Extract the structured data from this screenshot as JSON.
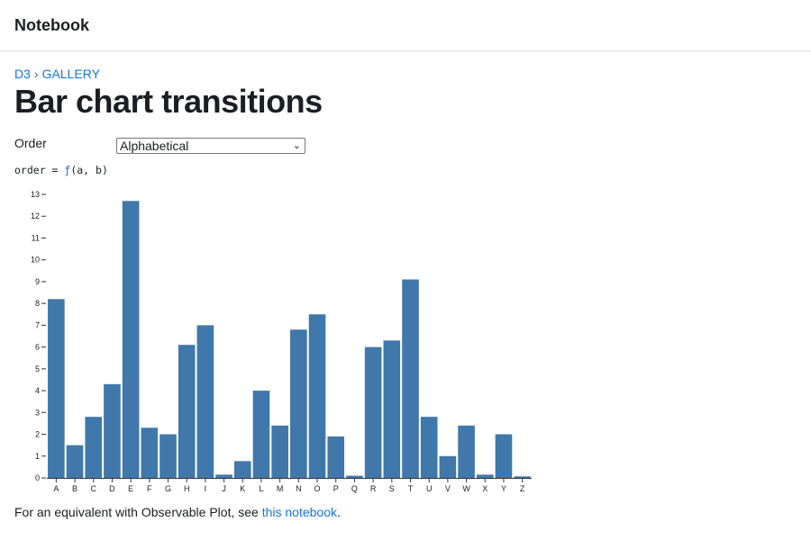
{
  "topbar": {
    "title": "Notebook"
  },
  "breadcrumb": {
    "root": "D3",
    "separator": "›",
    "section": "GALLERY"
  },
  "page": {
    "title": "Bar chart transitions"
  },
  "order": {
    "label": "Order",
    "selected": "Alphabetical"
  },
  "code": {
    "prefix": "order = ",
    "fn": "ƒ",
    "suffix": "(a, b)"
  },
  "footer": {
    "text": "For an equivalent with Observable Plot, see ",
    "link": "this notebook",
    "end": "."
  },
  "colors": {
    "bar": "#4178ac",
    "link": "#1473e6"
  },
  "chart_data": {
    "type": "bar",
    "categories": [
      "A",
      "B",
      "C",
      "D",
      "E",
      "F",
      "G",
      "H",
      "I",
      "J",
      "K",
      "L",
      "M",
      "N",
      "O",
      "P",
      "Q",
      "R",
      "S",
      "T",
      "U",
      "V",
      "W",
      "X",
      "Y",
      "Z"
    ],
    "values": [
      8.2,
      1.5,
      2.8,
      4.3,
      12.7,
      2.3,
      2.0,
      6.1,
      7.0,
      0.15,
      0.77,
      4.0,
      2.4,
      6.8,
      7.5,
      1.9,
      0.1,
      6.0,
      6.3,
      9.1,
      2.8,
      1.0,
      2.4,
      0.15,
      2.0,
      0.07
    ],
    "ylim": [
      0,
      13
    ],
    "yticks": [
      0,
      1,
      2,
      3,
      4,
      5,
      6,
      7,
      8,
      9,
      10,
      11,
      12,
      13
    ],
    "xlabel": "",
    "ylabel": "",
    "grid": false
  }
}
